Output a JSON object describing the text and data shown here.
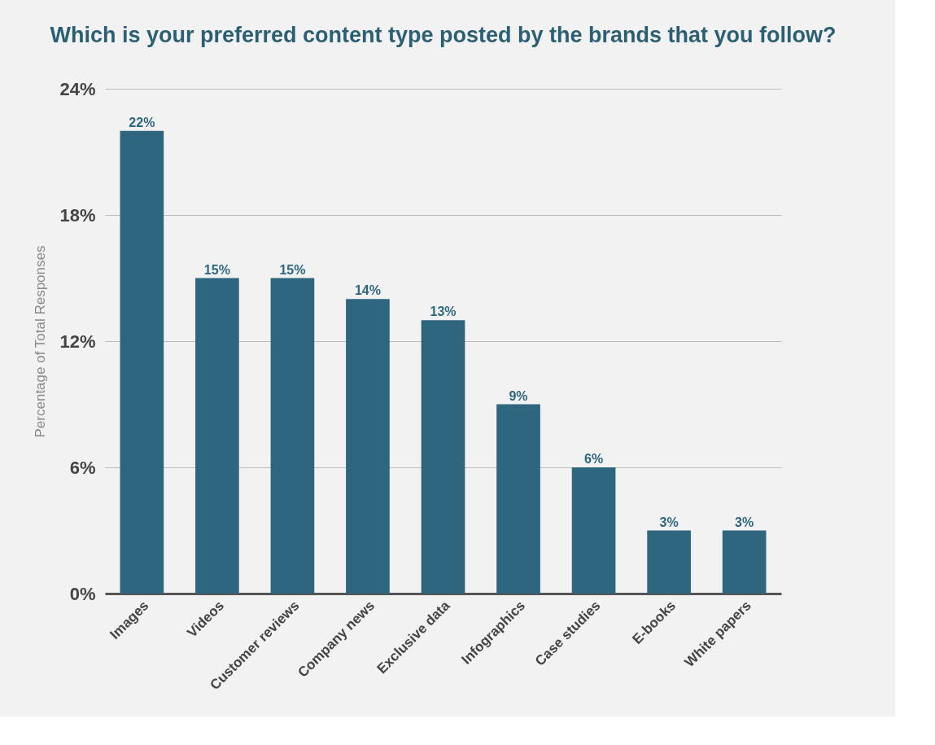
{
  "chart_data": {
    "type": "bar",
    "title": "Which is your preferred content type posted by the brands that you follow?",
    "ylabel": "Percentage of Total Responses",
    "categories": [
      "Images",
      "Videos",
      "Customer reviews",
      "Company news",
      "Exclusive data",
      "Infographics",
      "Case studies",
      "E-books",
      "White papers"
    ],
    "values": [
      22,
      15,
      15,
      14,
      13,
      9,
      6,
      3,
      3
    ],
    "value_labels": [
      "22%",
      "15%",
      "15%",
      "14%",
      "13%",
      "9%",
      "6%",
      "3%",
      "3%"
    ],
    "color": "#2e6680",
    "ylim": [
      0,
      24
    ],
    "yticks": [
      {
        "value": 0,
        "label": "0%"
      },
      {
        "value": 6,
        "label": "6%"
      },
      {
        "value": 12,
        "label": "12%"
      },
      {
        "value": 18,
        "label": "18%"
      },
      {
        "value": 24,
        "label": "24%"
      }
    ],
    "grid": "y"
  }
}
